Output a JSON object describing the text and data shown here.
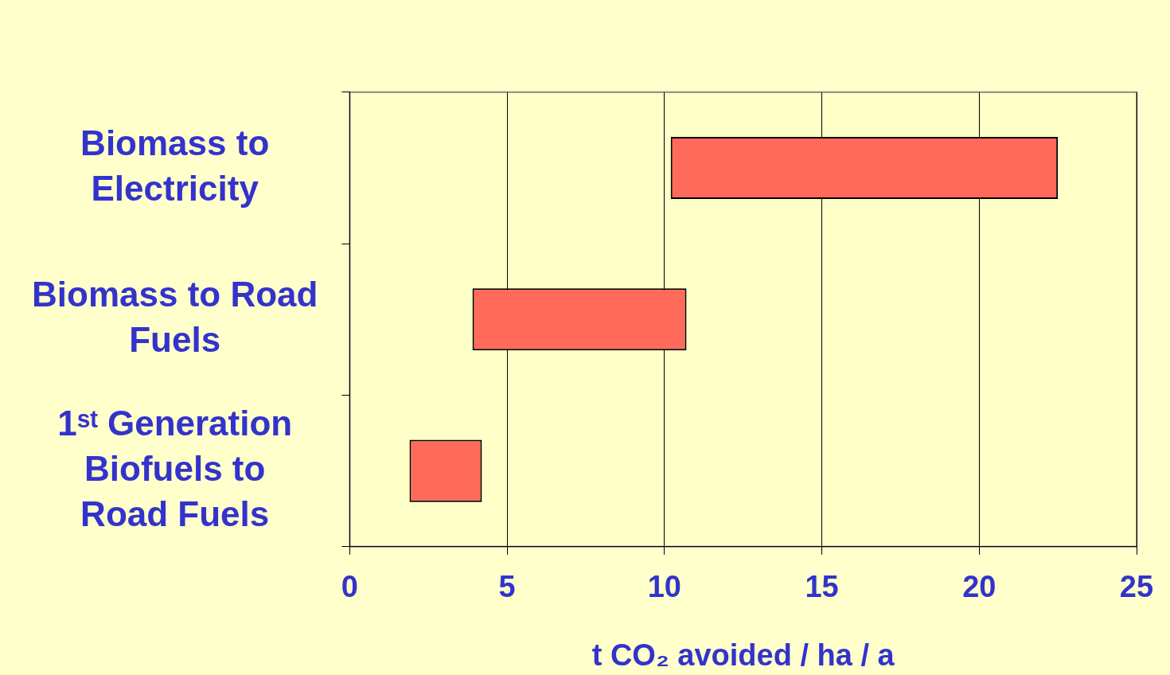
{
  "chart_data": {
    "type": "bar",
    "orientation": "horizontal",
    "categories": [
      "Biomass to Electricity",
      "Biomass to Road Fuels",
      "1ˢᵗ Generation Biofuels to Road Fuels"
    ],
    "base": [
      10.2,
      3.9,
      1.9
    ],
    "values": [
      12.3,
      6.8,
      2.3
    ],
    "color": "#ff6a5a",
    "xlabel": "t CO₂ avoided / ha / a",
    "xlim": [
      0,
      25
    ],
    "xticks": [
      0,
      5,
      10,
      15,
      20,
      25
    ],
    "grid": "x",
    "legend": false
  }
}
